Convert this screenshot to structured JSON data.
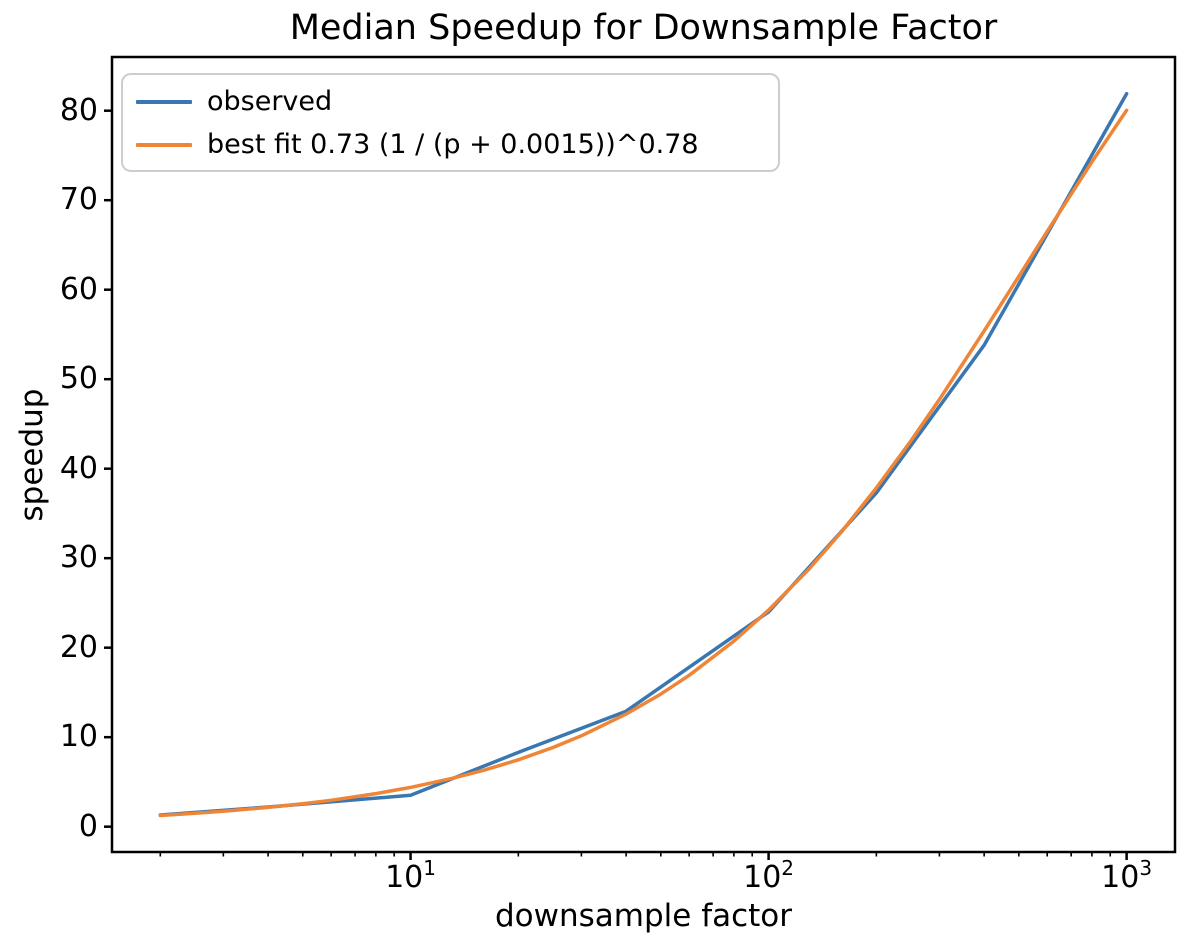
{
  "chart_data": {
    "type": "line",
    "title": "Median Speedup for Downsample Factor",
    "xlabel": "downsample factor",
    "ylabel": "speedup",
    "x_scale": "log",
    "y_scale": "linear",
    "xlim": [
      1.466,
      1365
    ],
    "ylim": [
      -2.83,
      86.0
    ],
    "grid": false,
    "legend_position": "upper-left",
    "background_color": "#ffffff",
    "axis_color": "#000000",
    "legend_border_color": "#cdcdcd",
    "y_ticks": [
      0,
      10,
      20,
      30,
      40,
      50,
      60,
      70,
      80
    ],
    "x_major_ticks": [
      {
        "value": 10,
        "base": "10",
        "exponent": "1"
      },
      {
        "value": 100,
        "base": "10",
        "exponent": "2"
      },
      {
        "value": 1000,
        "base": "10",
        "exponent": "3"
      }
    ],
    "x_minor_ticks": [
      2,
      3,
      4,
      5,
      6,
      7,
      8,
      9,
      20,
      30,
      40,
      50,
      60,
      70,
      80,
      90,
      200,
      300,
      400,
      500,
      600,
      700,
      800,
      900
    ],
    "series": [
      {
        "name": "observed",
        "color": "#3a76af",
        "line_width": 3.5,
        "x": [
          2,
          4,
          10,
          20,
          40,
          100,
          200,
          400,
          1000
        ],
        "y": [
          1.3,
          2.2,
          3.5,
          8.3,
          12.9,
          24.0,
          37.3,
          53.8,
          81.9
        ]
      },
      {
        "name": "best fit 0.73 (1 / (p + 0.0015))^0.78",
        "color": "#ef8536",
        "line_width": 3.5,
        "fit_coefficient": 0.73,
        "fit_offset": 0.0015,
        "fit_exponent": 0.78,
        "x": [
          2,
          2.5,
          3,
          4,
          5,
          6,
          8,
          10,
          13,
          16,
          20,
          25,
          30,
          40,
          50,
          60,
          80,
          100,
          130,
          160,
          200,
          250,
          300,
          400,
          500,
          600,
          800,
          1000
        ],
        "y": [
          1.25,
          1.49,
          1.72,
          2.15,
          2.56,
          2.95,
          3.69,
          4.39,
          5.37,
          6.3,
          7.47,
          8.85,
          10.15,
          12.58,
          14.81,
          16.91,
          20.74,
          24.2,
          28.84,
          32.97,
          37.85,
          43.14,
          47.73,
          55.38,
          61.49,
          66.51,
          74.28,
          80.04
        ]
      }
    ]
  }
}
